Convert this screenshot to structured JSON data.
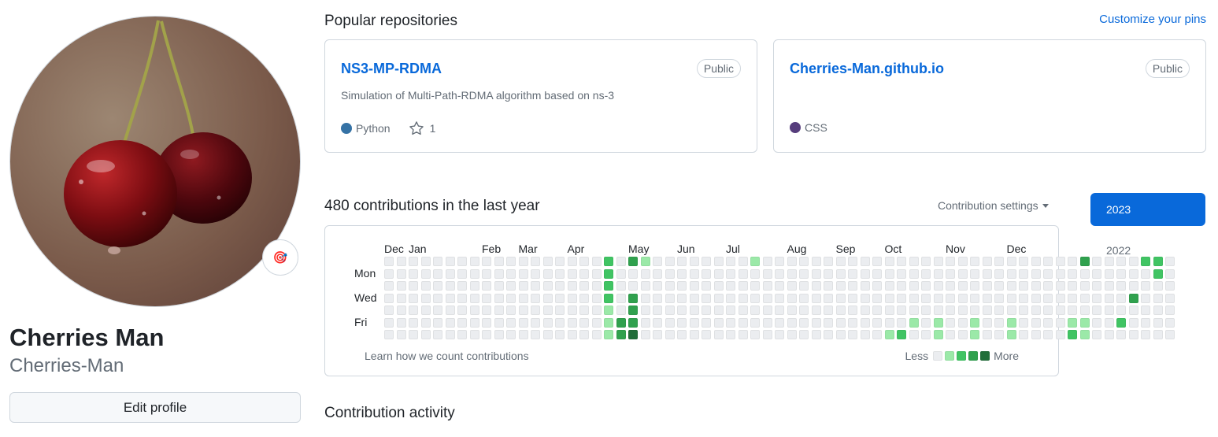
{
  "profile": {
    "full_name": "Cherries Man",
    "username": "Cherries-Man",
    "edit_label": "Edit profile",
    "status_emoji": "🎯"
  },
  "pinned": {
    "title": "Popular repositories",
    "customize_label": "Customize your pins",
    "repos": [
      {
        "name": "NS3-MP-RDMA",
        "visibility": "Public",
        "description": "Simulation of Multi-Path-RDMA algorithm based on ns-3",
        "language": "Python",
        "language_color": "#3572A5",
        "stars": "1"
      },
      {
        "name": "Cherries-Man.github.io",
        "visibility": "Public",
        "description": "",
        "language": "CSS",
        "language_color": "#563d7c",
        "stars": ""
      }
    ]
  },
  "contributions": {
    "title": "480 contributions in the last year",
    "settings_label": "Contribution settings",
    "months": [
      "Dec",
      "Jan",
      "Feb",
      "Mar",
      "Apr",
      "May",
      "Jun",
      "Jul",
      "Aug",
      "Sep",
      "Oct",
      "Nov",
      "Dec"
    ],
    "days": [
      "Mon",
      "Wed",
      "Fri"
    ],
    "learn_label": "Learn how we count contributions",
    "legend_less": "Less",
    "legend_more": "More",
    "level_colors": [
      "#ebedf0",
      "#9be9a8",
      "#40c463",
      "#30a14e",
      "#216e39"
    ],
    "weeks": [
      "0000000",
      "0000000",
      "0000000",
      "0000000",
      "0000000",
      "0000000",
      "0000000",
      "0000000",
      "0000000",
      "0000000",
      "0000000",
      "0000000",
      "0000000",
      "0000000",
      "0000000",
      "0000000",
      "0000000",
      "0000000",
      "2222111",
      "0000033",
      "3003334",
      "1000000",
      "0000000",
      "0000000",
      "0000000",
      "0000000",
      "0000000",
      "0000000",
      "0000000",
      "0000000",
      "1000000",
      "0000000",
      "0000000",
      "0000000",
      "0000000",
      "0000000",
      "0000000",
      "0000000",
      "0000000",
      "0000000",
      "0000000",
      "0000001",
      "0000002",
      "0000010",
      "0000000",
      "0000011",
      "0000000",
      "0000000",
      "0000011",
      "0000000",
      "0000000",
      "0000011",
      "0000000",
      "0000000",
      "0000000",
      "0000000",
      "0000012",
      "3000011",
      "0000000",
      "0000000",
      "0000020",
      "0003000",
      "2000000",
      "2200000",
      "0000000"
    ]
  },
  "years": [
    "2023",
    "2022"
  ],
  "activity_title": "Contribution activity"
}
